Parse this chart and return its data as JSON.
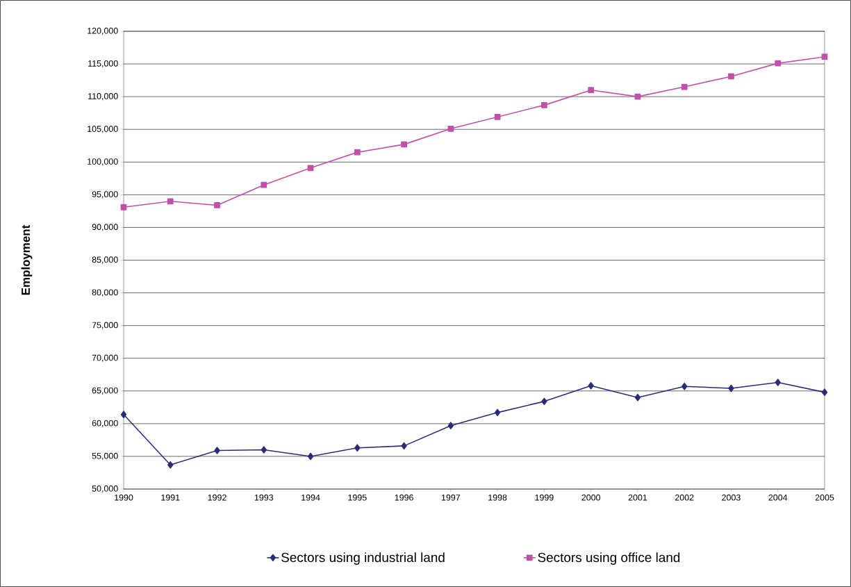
{
  "chart_data": {
    "type": "line",
    "ylabel": "Employment",
    "categories": [
      "1990",
      "1991",
      "1992",
      "1993",
      "1994",
      "1995",
      "1996",
      "1997",
      "1998",
      "1999",
      "2000",
      "2001",
      "2002",
      "2003",
      "2004",
      "2005"
    ],
    "series": [
      {
        "name": "Sectors using industrial land",
        "color": "#2b2b7a",
        "marker": "diamond",
        "values": [
          61400,
          53700,
          55900,
          56000,
          55000,
          56300,
          56600,
          59700,
          61700,
          63400,
          65800,
          64000,
          65700,
          65400,
          66300,
          64800
        ]
      },
      {
        "name": "Sectors using office land",
        "color": "#c050a8",
        "marker": "square",
        "values": [
          93100,
          94000,
          93400,
          96500,
          99100,
          101500,
          102700,
          105100,
          106900,
          108700,
          111000,
          110000,
          111500,
          113100,
          115100,
          116100
        ]
      }
    ],
    "ylim": [
      50000,
      120000
    ],
    "yticks": [
      {
        "value": 50000,
        "label": "50,000"
      },
      {
        "value": 55000,
        "label": "55,000"
      },
      {
        "value": 60000,
        "label": "60,000"
      },
      {
        "value": 65000,
        "label": "65,000"
      },
      {
        "value": 70000,
        "label": "70,000"
      },
      {
        "value": 75000,
        "label": "75,000"
      },
      {
        "value": 80000,
        "label": "80,000"
      },
      {
        "value": 85000,
        "label": "85,000"
      },
      {
        "value": 90000,
        "label": "90,000"
      },
      {
        "value": 95000,
        "label": "95,000"
      },
      {
        "value": 100000,
        "label": "100,000"
      },
      {
        "value": 105000,
        "label": "105,000"
      },
      {
        "value": 110000,
        "label": "110,000"
      },
      {
        "value": 115000,
        "label": "115,000"
      },
      {
        "value": 120000,
        "label": "120,000"
      }
    ],
    "grid": "y",
    "legend": "bottom",
    "line_style": "solid"
  }
}
